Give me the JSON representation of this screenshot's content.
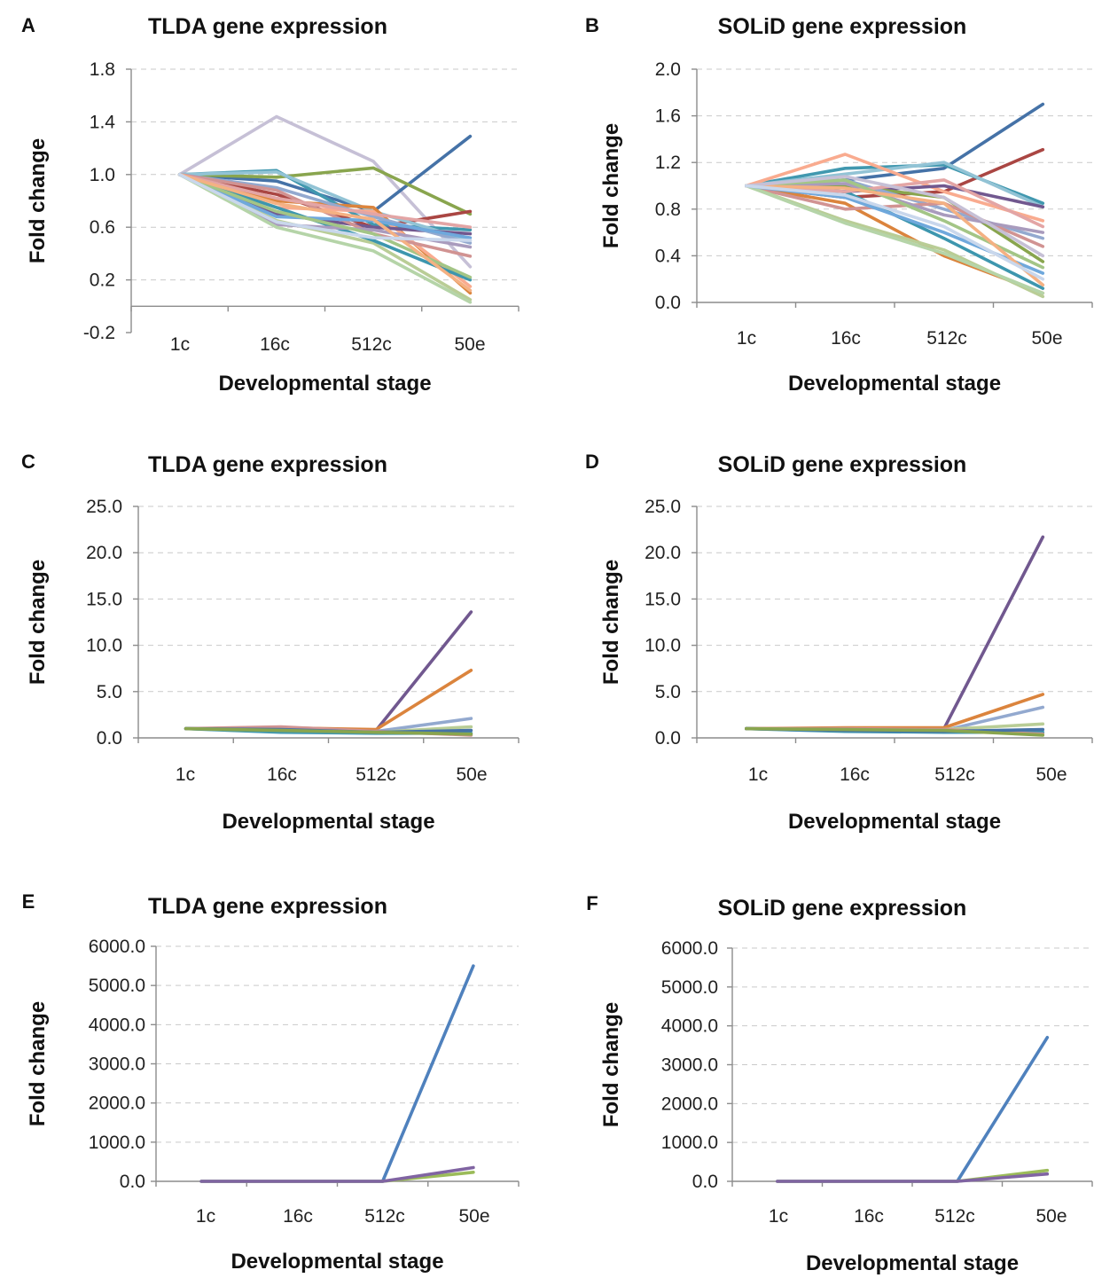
{
  "series_colors": [
    "#4572a7",
    "#aa4643",
    "#89a54e",
    "#71588f",
    "#4198af",
    "#db843d",
    "#93a9cf",
    "#d19392",
    "#b9cd96",
    "#a99bbd",
    "#92c3d5",
    "#f9ab8f",
    "#3d96ae",
    "#c6c0d6",
    "#b5d4a8",
    "#e3a5a5",
    "#6fa8dc",
    "#a3c586",
    "#f4b183",
    "#c9d7ec"
  ],
  "chart_data": [
    {
      "panel_letter": "A",
      "type": "line",
      "title": "TLDA gene expression",
      "xlabel": "Developmental stage",
      "ylabel": "Fold change",
      "categories": [
        "1c",
        "16c",
        "512c",
        "50e"
      ],
      "ylim": [
        -0.2,
        1.8
      ],
      "yticks": [
        -0.2,
        0.2,
        0.6,
        1.0,
        1.4,
        1.8
      ],
      "ytick_labels": [
        "-0.2",
        "0.2",
        "0.6",
        "1.0",
        "1.4",
        "1.8"
      ],
      "series": [
        {
          "color": "#c6c0d6",
          "values": [
            1.0,
            1.44,
            1.1,
            0.3
          ]
        },
        {
          "color": "#4572a7",
          "values": [
            1.0,
            0.95,
            0.72,
            1.29
          ]
        },
        {
          "color": "#89a54e",
          "values": [
            1.0,
            0.98,
            1.05,
            0.7
          ]
        },
        {
          "color": "#aa4643",
          "values": [
            1.0,
            0.85,
            0.6,
            0.72
          ]
        },
        {
          "color": "#4198af",
          "values": [
            1.0,
            1.03,
            0.62,
            0.58
          ]
        },
        {
          "color": "#92c3d5",
          "values": [
            1.0,
            1.02,
            0.72,
            0.5
          ]
        },
        {
          "color": "#db843d",
          "values": [
            1.0,
            0.8,
            0.75,
            0.1
          ]
        },
        {
          "color": "#f9ab8f",
          "values": [
            1.0,
            0.75,
            0.72,
            0.15
          ]
        },
        {
          "color": "#71588f",
          "values": [
            1.0,
            0.7,
            0.6,
            0.55
          ]
        },
        {
          "color": "#93a9cf",
          "values": [
            1.0,
            0.9,
            0.68,
            0.48
          ]
        },
        {
          "color": "#d19392",
          "values": [
            1.0,
            0.88,
            0.55,
            0.38
          ]
        },
        {
          "color": "#b9cd96",
          "values": [
            1.0,
            0.65,
            0.48,
            0.05
          ]
        },
        {
          "color": "#3d96ae",
          "values": [
            1.0,
            0.75,
            0.5,
            0.2
          ]
        },
        {
          "color": "#a99bbd",
          "values": [
            1.0,
            0.62,
            0.58,
            0.45
          ]
        },
        {
          "color": "#b5d4a8",
          "values": [
            1.0,
            0.6,
            0.42,
            0.03
          ]
        },
        {
          "color": "#e3a5a5",
          "values": [
            1.0,
            0.82,
            0.7,
            0.6
          ]
        },
        {
          "color": "#6fa8dc",
          "values": [
            1.0,
            0.68,
            0.65,
            0.52
          ]
        },
        {
          "color": "#a3c586",
          "values": [
            1.0,
            0.72,
            0.55,
            0.22
          ]
        },
        {
          "color": "#f4b183",
          "values": [
            1.0,
            0.78,
            0.66,
            0.12
          ]
        },
        {
          "color": "#c9d7ec",
          "values": [
            1.0,
            0.64,
            0.52,
            0.5
          ]
        }
      ]
    },
    {
      "panel_letter": "B",
      "type": "line",
      "title": "SOLiD gene expression",
      "xlabel": "Developmental stage",
      "ylabel": "Fold change",
      "categories": [
        "1c",
        "16c",
        "512c",
        "50e"
      ],
      "ylim": [
        0.0,
        2.0
      ],
      "yticks": [
        0.0,
        0.4,
        0.8,
        1.2,
        1.6,
        2.0
      ],
      "ytick_labels": [
        "0.0",
        "0.4",
        "0.8",
        "1.2",
        "1.6",
        "2.0"
      ],
      "series": [
        {
          "color": "#4572a7",
          "values": [
            1.0,
            1.05,
            1.15,
            1.7
          ]
        },
        {
          "color": "#aa4643",
          "values": [
            1.0,
            0.9,
            0.95,
            1.31
          ]
        },
        {
          "color": "#4198af",
          "values": [
            1.0,
            1.15,
            1.18,
            0.85
          ]
        },
        {
          "color": "#92c3d5",
          "values": [
            1.0,
            1.1,
            1.2,
            0.82
          ]
        },
        {
          "color": "#f9ab8f",
          "values": [
            1.0,
            1.27,
            0.95,
            0.7
          ]
        },
        {
          "color": "#db843d",
          "values": [
            1.0,
            0.85,
            0.4,
            0.08
          ]
        },
        {
          "color": "#71588f",
          "values": [
            1.0,
            0.95,
            1.0,
            0.82
          ]
        },
        {
          "color": "#89a54e",
          "values": [
            1.0,
            1.0,
            0.9,
            0.35
          ]
        },
        {
          "color": "#93a9cf",
          "values": [
            1.0,
            1.05,
            0.8,
            0.55
          ]
        },
        {
          "color": "#d19392",
          "values": [
            1.0,
            0.8,
            0.85,
            0.48
          ]
        },
        {
          "color": "#b9cd96",
          "values": [
            1.0,
            0.7,
            0.45,
            0.05
          ]
        },
        {
          "color": "#3d96ae",
          "values": [
            1.0,
            0.95,
            0.55,
            0.12
          ]
        },
        {
          "color": "#a99bbd",
          "values": [
            1.0,
            1.02,
            0.75,
            0.6
          ]
        },
        {
          "color": "#b5d4a8",
          "values": [
            1.0,
            0.68,
            0.42,
            0.08
          ]
        },
        {
          "color": "#e3a5a5",
          "values": [
            1.0,
            0.95,
            1.05,
            0.65
          ]
        },
        {
          "color": "#6fa8dc",
          "values": [
            1.0,
            0.9,
            0.6,
            0.25
          ]
        },
        {
          "color": "#a3c586",
          "values": [
            1.0,
            1.05,
            0.7,
            0.3
          ]
        },
        {
          "color": "#f4b183",
          "values": [
            1.0,
            0.98,
            0.85,
            0.15
          ]
        },
        {
          "color": "#c6c0d6",
          "values": [
            1.0,
            1.08,
            0.9,
            0.4
          ]
        },
        {
          "color": "#c9d7ec",
          "values": [
            1.0,
            0.92,
            0.65,
            0.2
          ]
        }
      ]
    },
    {
      "panel_letter": "C",
      "type": "line",
      "title": "TLDA gene expression",
      "xlabel": "Developmental stage",
      "ylabel": "Fold change",
      "categories": [
        "1c",
        "16c",
        "512c",
        "50e"
      ],
      "ylim": [
        0.0,
        25.0
      ],
      "yticks": [
        0,
        5,
        10,
        15,
        20,
        25
      ],
      "ytick_labels": [
        "0.0",
        "5.0",
        "10.0",
        "15.0",
        "20.0",
        "25.0"
      ],
      "series": [
        {
          "color": "#71588f",
          "values": [
            1.0,
            0.9,
            0.8,
            13.6
          ]
        },
        {
          "color": "#db843d",
          "values": [
            1.0,
            1.1,
            0.9,
            7.3
          ]
        },
        {
          "color": "#93a9cf",
          "values": [
            1.0,
            0.8,
            0.7,
            2.1
          ]
        },
        {
          "color": "#b9cd96",
          "values": [
            1.0,
            0.7,
            0.6,
            1.2
          ]
        },
        {
          "color": "#4198af",
          "values": [
            1.0,
            0.6,
            0.5,
            0.5
          ]
        },
        {
          "color": "#d19392",
          "values": [
            1.0,
            1.2,
            0.7,
            0.3
          ]
        },
        {
          "color": "#4572a7",
          "values": [
            1.0,
            0.9,
            0.6,
            0.8
          ]
        },
        {
          "color": "#89a54e",
          "values": [
            1.0,
            0.8,
            0.6,
            0.4
          ]
        }
      ]
    },
    {
      "panel_letter": "D",
      "type": "line",
      "title": "SOLiD gene expression",
      "xlabel": "Developmental stage",
      "ylabel": "Fold change",
      "categories": [
        "1c",
        "16c",
        "512c",
        "50e"
      ],
      "ylim": [
        0.0,
        25.0
      ],
      "yticks": [
        0,
        5,
        10,
        15,
        20,
        25
      ],
      "ytick_labels": [
        "0.0",
        "5.0",
        "10.0",
        "15.0",
        "20.0",
        "25.0"
      ],
      "series": [
        {
          "color": "#71588f",
          "values": [
            1.0,
            0.9,
            1.0,
            21.7
          ]
        },
        {
          "color": "#db843d",
          "values": [
            1.0,
            1.1,
            1.1,
            4.7
          ]
        },
        {
          "color": "#93a9cf",
          "values": [
            1.0,
            0.9,
            0.8,
            3.3
          ]
        },
        {
          "color": "#b9cd96",
          "values": [
            1.0,
            0.8,
            0.9,
            1.5
          ]
        },
        {
          "color": "#4198af",
          "values": [
            1.0,
            0.7,
            0.6,
            0.6
          ]
        },
        {
          "color": "#d19392",
          "values": [
            1.0,
            1.0,
            0.9,
            0.4
          ]
        },
        {
          "color": "#4572a7",
          "values": [
            1.0,
            0.8,
            0.7,
            0.9
          ]
        },
        {
          "color": "#89a54e",
          "values": [
            1.0,
            0.9,
            0.8,
            0.3
          ]
        }
      ]
    },
    {
      "panel_letter": "E",
      "type": "line",
      "title": "TLDA gene expression",
      "xlabel": "Developmental stage",
      "ylabel": "Fold change",
      "categories": [
        "1c",
        "16c",
        "512c",
        "50e"
      ],
      "ylim": [
        0.0,
        6000.0
      ],
      "yticks": [
        0,
        1000,
        2000,
        3000,
        4000,
        5000,
        6000
      ],
      "ytick_labels": [
        "0.0",
        "1000.0",
        "2000.0",
        "3000.0",
        "4000.0",
        "5000.0",
        "6000.0"
      ],
      "series": [
        {
          "color": "#4f81bd",
          "values": [
            1,
            1,
            1,
            5500
          ]
        },
        {
          "color": "#9bbb59",
          "values": [
            1,
            1,
            1,
            230
          ]
        },
        {
          "color": "#8064a2",
          "values": [
            1,
            1,
            1,
            350
          ]
        }
      ]
    },
    {
      "panel_letter": "F",
      "type": "line",
      "title": "SOLiD gene expression",
      "xlabel": "Developmental stage",
      "ylabel": "Fold change",
      "categories": [
        "1c",
        "16c",
        "512c",
        "50e"
      ],
      "ylim": [
        0.0,
        6000.0
      ],
      "yticks": [
        0,
        1000,
        2000,
        3000,
        4000,
        5000,
        6000
      ],
      "ytick_labels": [
        "0.0",
        "1000.0",
        "2000.0",
        "3000.0",
        "4000.0",
        "5000.0",
        "6000.0"
      ],
      "series": [
        {
          "color": "#4f81bd",
          "values": [
            1,
            1,
            1,
            3700
          ]
        },
        {
          "color": "#9bbb59",
          "values": [
            1,
            1,
            1,
            280
          ]
        },
        {
          "color": "#8064a2",
          "values": [
            1,
            1,
            1,
            190
          ]
        }
      ]
    }
  ]
}
